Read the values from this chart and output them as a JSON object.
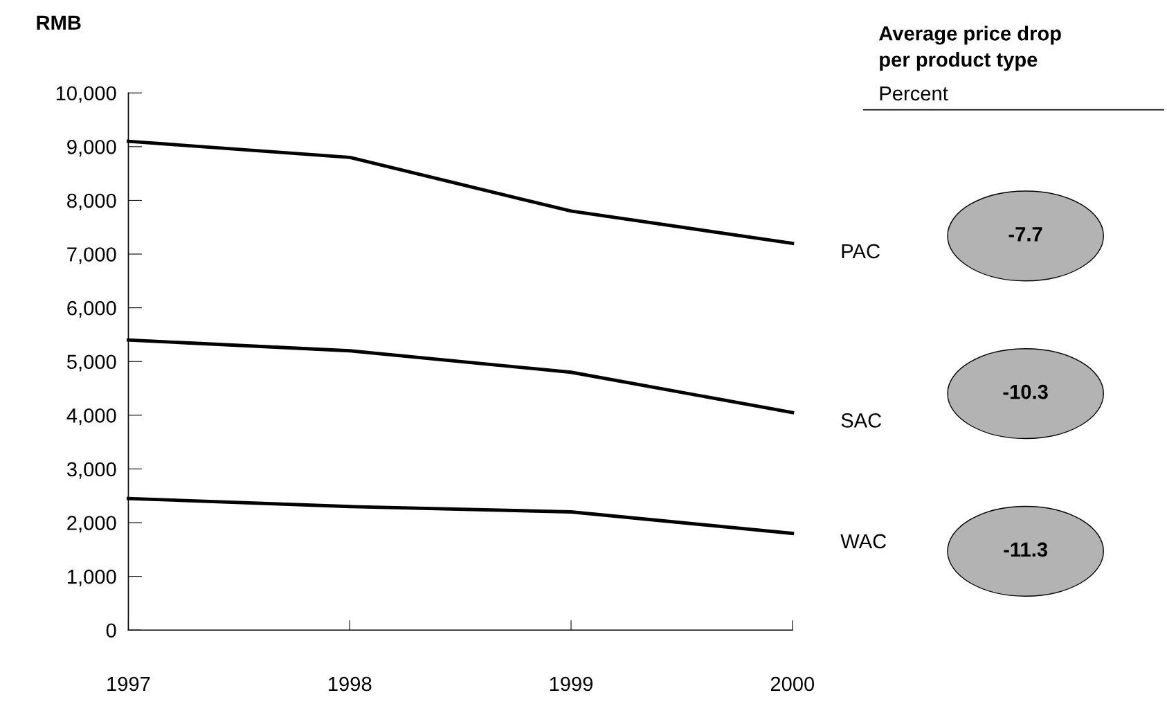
{
  "chart_data": [
    {
      "type": "line",
      "ylabel": "RMB",
      "x": [
        1997,
        1998,
        1999,
        2000
      ],
      "series": [
        {
          "name": "PAC",
          "color": "#000000",
          "values": [
            9100,
            8800,
            7800,
            7200
          ]
        },
        {
          "name": "SAC",
          "color": "#000000",
          "values": [
            5400,
            5200,
            4800,
            4050
          ]
        },
        {
          "name": "WAC",
          "color": "#000000",
          "values": [
            2450,
            2300,
            2200,
            1800
          ]
        }
      ],
      "xlim": [
        1997,
        2000
      ],
      "xticks": [
        1997,
        1998,
        1999,
        2000
      ],
      "ylim": [
        0,
        10000
      ],
      "yticks": [
        0,
        {
          "value": 1000,
          "label": "1,000"
        },
        {
          "value": 2000,
          "label": "2,000"
        },
        {
          "value": 3000,
          "label": "3,000"
        },
        {
          "value": 4000,
          "label": "4,000"
        },
        {
          "value": 5000,
          "label": "5,000"
        },
        {
          "value": 6000,
          "label": "6,000"
        },
        {
          "value": 7000,
          "label": "7,000"
        },
        {
          "value": 8000,
          "label": "8,000"
        },
        {
          "value": 9000,
          "label": "9,000"
        },
        {
          "value": 10000,
          "label": "10,000"
        }
      ],
      "grid": false,
      "legend": false,
      "marker": "none",
      "line_style": "solid"
    },
    {
      "type": "other",
      "title": "Average price drop\nper product type",
      "subtitle": "Percent",
      "categories": [
        null,
        null,
        null
      ],
      "values": [
        -7.7,
        -10.3,
        -11.3
      ],
      "colors": [
        "#b3b3b3",
        "#b3b3b3",
        "#b3b3b3"
      ],
      "data_labels": true
    }
  ]
}
